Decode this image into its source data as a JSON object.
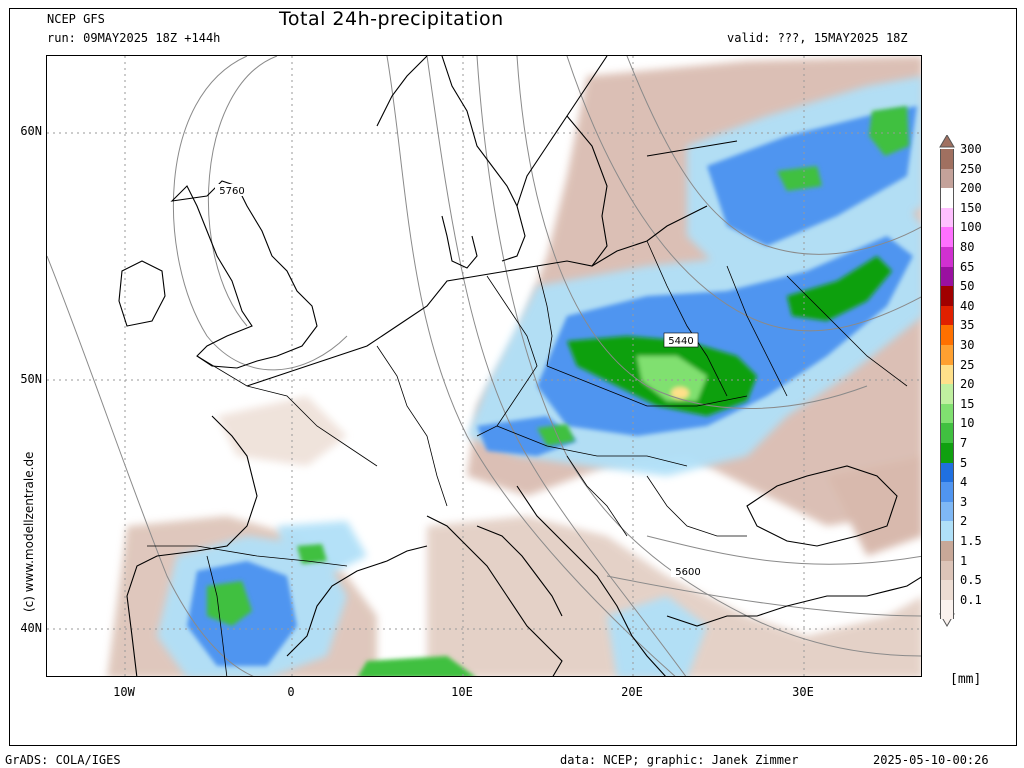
{
  "header": {
    "model": "NCEP GFS",
    "run": "run: 09MAY2025 18Z +144h",
    "title": "Total 24h-precipitation",
    "valid": "valid: ???, 15MAY2025 18Z"
  },
  "map": {
    "lat_labels": [
      "60N",
      "50N",
      "40N"
    ],
    "lon_labels": [
      "10W",
      "0",
      "10E",
      "20E",
      "30E"
    ],
    "contour_labels": [
      "5760",
      "5440",
      "5600"
    ],
    "credit": "(c) www.modellzentrale.de"
  },
  "legend": {
    "unit": "[mm]",
    "levels": [
      "300",
      "250",
      "200",
      "150",
      "100",
      "80",
      "65",
      "50",
      "40",
      "35",
      "30",
      "25",
      "20",
      "15",
      "10",
      "7",
      "5",
      "4",
      "3",
      "2",
      "1.5",
      "1",
      "0.5",
      "0.1"
    ],
    "colors": [
      "#a07060",
      "#c4a29a",
      "#ffffff",
      "#ffc0ff",
      "#ff70ff",
      "#d030d0",
      "#9a10a0",
      "#a00000",
      "#e02000",
      "#ff7000",
      "#ffa030",
      "#ffe08a",
      "#c0f0a0",
      "#80e070",
      "#40c040",
      "#10a010",
      "#2070e0",
      "#5095f0",
      "#7fb8f5",
      "#b0e0f8",
      "#c8a898",
      "#dcc4b8",
      "#ecdcd2",
      "#faf2ee"
    ]
  },
  "footer": {
    "left": "GrADS: COLA/IGES",
    "data": "data: NCEP; graphic: Janek Zimmer",
    "timestamp": "2025-05-10-00:26"
  }
}
